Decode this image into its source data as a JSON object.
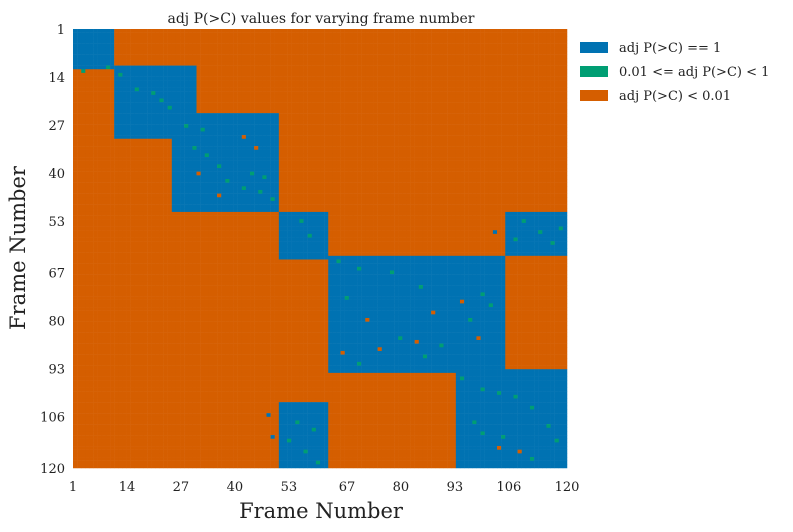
{
  "chart_data": {
    "type": "heatmap",
    "title": "adj P(>C) values for varying frame number",
    "xlabel": "Frame Number",
    "ylabel": "Frame Number",
    "xlim": [
      1,
      120
    ],
    "ylim": [
      1,
      120
    ],
    "x_ticks": [
      "1",
      "14",
      "27",
      "40",
      "53",
      "67",
      "80",
      "93",
      "106",
      "120"
    ],
    "y_ticks": [
      "1",
      "14",
      "27",
      "40",
      "53",
      "67",
      "80",
      "93",
      "106",
      "120"
    ],
    "grid": false,
    "legend": {
      "placement": "upper-right-outside",
      "entries": [
        {
          "label": "adj P(>C) == 1",
          "color": "#0072b2"
        },
        {
          "label": "0.01 <= adj P(>C) < 1",
          "color": "#009e73"
        },
        {
          "label": "adj P(>C) < 0.01",
          "color": "#d55e00"
        }
      ]
    },
    "colors": {
      "eq1": "#0072b2",
      "mid": "#009e73",
      "low": "#d55e00"
    },
    "background_category": "adj P(>C) < 0.01",
    "blue_blocks": [
      {
        "x_from": 1,
        "x_to": 10,
        "y_from": 1,
        "y_to": 11
      },
      {
        "x_from": 11,
        "x_to": 30,
        "y_from": 11,
        "y_to": 30
      },
      {
        "x_from": 25,
        "x_to": 50,
        "y_from": 24,
        "y_to": 50
      },
      {
        "x_from": 51,
        "x_to": 62,
        "y_from": 51,
        "y_to": 63
      },
      {
        "x_from": 63,
        "x_to": 105,
        "y_from": 63,
        "y_to": 94
      },
      {
        "x_from": 94,
        "x_to": 120,
        "y_from": 94,
        "y_to": 120
      },
      {
        "x_from": 51,
        "x_to": 62,
        "y_from": 103,
        "y_to": 120
      },
      {
        "x_from": 106,
        "x_to": 120,
        "y_from": 51,
        "y_to": 62
      }
    ],
    "green_cells": [
      {
        "x": 9,
        "y": 11
      },
      {
        "x": 3,
        "y": 12
      },
      {
        "x": 12,
        "y": 13
      },
      {
        "x": 16,
        "y": 17
      },
      {
        "x": 20,
        "y": 18
      },
      {
        "x": 22,
        "y": 20
      },
      {
        "x": 24,
        "y": 22
      },
      {
        "x": 28,
        "y": 27
      },
      {
        "x": 32,
        "y": 28
      },
      {
        "x": 30,
        "y": 33
      },
      {
        "x": 33,
        "y": 35
      },
      {
        "x": 36,
        "y": 38
      },
      {
        "x": 38,
        "y": 42
      },
      {
        "x": 44,
        "y": 40
      },
      {
        "x": 42,
        "y": 44
      },
      {
        "x": 46,
        "y": 45
      },
      {
        "x": 47,
        "y": 41
      },
      {
        "x": 49,
        "y": 47
      },
      {
        "x": 56,
        "y": 53
      },
      {
        "x": 58,
        "y": 57
      },
      {
        "x": 65,
        "y": 64
      },
      {
        "x": 70,
        "y": 66
      },
      {
        "x": 78,
        "y": 67
      },
      {
        "x": 67,
        "y": 74
      },
      {
        "x": 85,
        "y": 71
      },
      {
        "x": 100,
        "y": 73
      },
      {
        "x": 102,
        "y": 76
      },
      {
        "x": 97,
        "y": 80
      },
      {
        "x": 80,
        "y": 85
      },
      {
        "x": 90,
        "y": 87
      },
      {
        "x": 86,
        "y": 90
      },
      {
        "x": 70,
        "y": 92
      },
      {
        "x": 95,
        "y": 96
      },
      {
        "x": 100,
        "y": 99
      },
      {
        "x": 104,
        "y": 100
      },
      {
        "x": 108,
        "y": 101
      },
      {
        "x": 112,
        "y": 104
      },
      {
        "x": 116,
        "y": 109
      },
      {
        "x": 118,
        "y": 113
      },
      {
        "x": 105,
        "y": 112
      },
      {
        "x": 100,
        "y": 111
      },
      {
        "x": 98,
        "y": 108
      },
      {
        "x": 112,
        "y": 118
      },
      {
        "x": 55,
        "y": 108
      },
      {
        "x": 59,
        "y": 110
      },
      {
        "x": 53,
        "y": 113
      },
      {
        "x": 57,
        "y": 116
      },
      {
        "x": 60,
        "y": 119
      },
      {
        "x": 110,
        "y": 53
      },
      {
        "x": 114,
        "y": 56
      },
      {
        "x": 117,
        "y": 59
      },
      {
        "x": 108,
        "y": 58
      },
      {
        "x": 119,
        "y": 55
      }
    ],
    "orange_cells_inside_blocks": [
      {
        "x": 72,
        "y": 80
      },
      {
        "x": 88,
        "y": 78
      },
      {
        "x": 95,
        "y": 75
      },
      {
        "x": 75,
        "y": 88
      },
      {
        "x": 84,
        "y": 86
      },
      {
        "x": 99,
        "y": 85
      },
      {
        "x": 66,
        "y": 89
      },
      {
        "x": 42,
        "y": 30
      },
      {
        "x": 45,
        "y": 33
      },
      {
        "x": 36,
        "y": 46
      },
      {
        "x": 31,
        "y": 40
      },
      {
        "x": 104,
        "y": 115
      },
      {
        "x": 109,
        "y": 116
      }
    ],
    "blue_cells_outside_blocks": [
      {
        "x": 14,
        "y": 12
      },
      {
        "x": 18,
        "y": 15
      },
      {
        "x": 21,
        "y": 17
      },
      {
        "x": 27,
        "y": 22
      },
      {
        "x": 47,
        "y": 35
      },
      {
        "x": 49,
        "y": 38
      },
      {
        "x": 103,
        "y": 92
      },
      {
        "x": 106,
        "y": 95
      },
      {
        "x": 110,
        "y": 98
      },
      {
        "x": 48,
        "y": 106
      },
      {
        "x": 49,
        "y": 112
      },
      {
        "x": 103,
        "y": 56
      }
    ]
  }
}
